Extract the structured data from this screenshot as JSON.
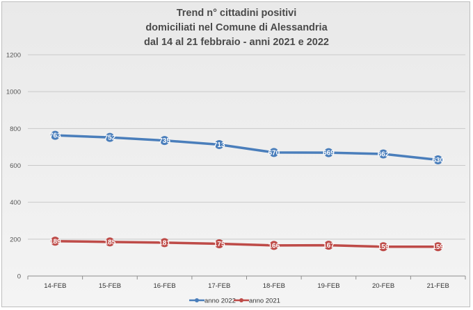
{
  "chart_data": {
    "type": "line",
    "title_lines": [
      "Trend n° cittadini positivi",
      "domiciliati nel Comune di Alessandria",
      "dal 14 al 21 febbraio - anni 2021 e 2022"
    ],
    "categories": [
      "14-FEB",
      "15-FEB",
      "16-FEB",
      "17-FEB",
      "18-FEB",
      "19-FEB",
      "20-FEB",
      "21-FEB"
    ],
    "ylim": [
      0,
      1200
    ],
    "yticks": [
      0,
      200,
      400,
      600,
      800,
      1000,
      1200
    ],
    "grid": true,
    "legend_position": "bottom",
    "series": [
      {
        "name": "anno 2022",
        "color": "#4a7ebb",
        "values": [
          763,
          752,
          735,
          713,
          670,
          669,
          662,
          630
        ],
        "labels": [
          "763",
          "752",
          "735",
          "713",
          "670",
          "669",
          "662",
          "630"
        ]
      },
      {
        "name": "anno 2021",
        "color": "#be4b48",
        "values": [
          189,
          185,
          181,
          175,
          166,
          167,
          159,
          159
        ],
        "labels": [
          "189",
          "185",
          "181",
          "175",
          "166",
          "167",
          "159",
          "159"
        ]
      }
    ]
  }
}
